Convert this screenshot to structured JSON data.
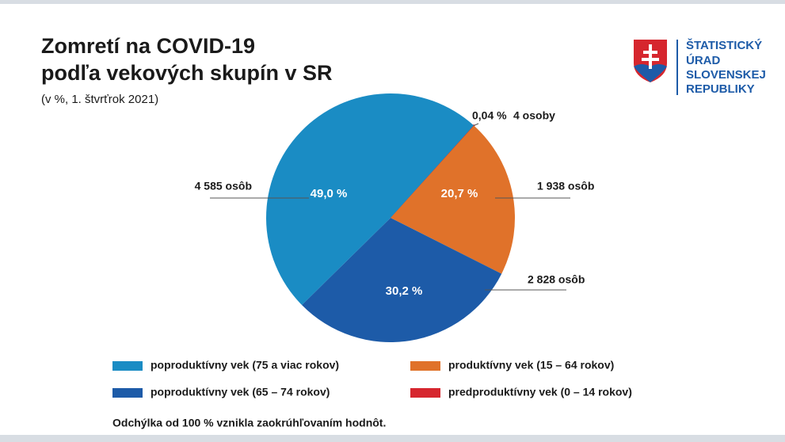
{
  "chart_data": {
    "type": "pie",
    "title_lines": [
      "Zomretí na COVID-19",
      "podľa vekových skupín v SR"
    ],
    "subtitle": "(v %, 1. štvrťrok 2021)",
    "categories": [
      "predproduktívny vek (0 – 14 rokov)",
      "produktívny vek (15 – 64 rokov)",
      "poproduktívny vek (65 – 74 rokov)",
      "poproduktívny vek (75 a viac rokov)"
    ],
    "values": [
      0.04,
      20.7,
      30.2,
      49.0
    ],
    "value_labels": [
      "0,04 %",
      "20,7 %",
      "30,2 %",
      "49,0 %"
    ],
    "counts": [
      4,
      1938,
      2828,
      4585
    ],
    "count_labels": [
      "4 osoby",
      "1 938 osôb",
      "2 828 osôb",
      "4 585 osôb"
    ],
    "colors": [
      "#d6262e",
      "#e0722a",
      "#1d5ba8",
      "#1a8cc4"
    ],
    "note": "Odchýlka od 100 % vznikla zaokrúhľovaním hodnôt.",
    "logo_lines": [
      "ŠTATISTICKÝ",
      "ÚRAD",
      "SLOVENSKEJ",
      "REPUBLIKY"
    ]
  }
}
